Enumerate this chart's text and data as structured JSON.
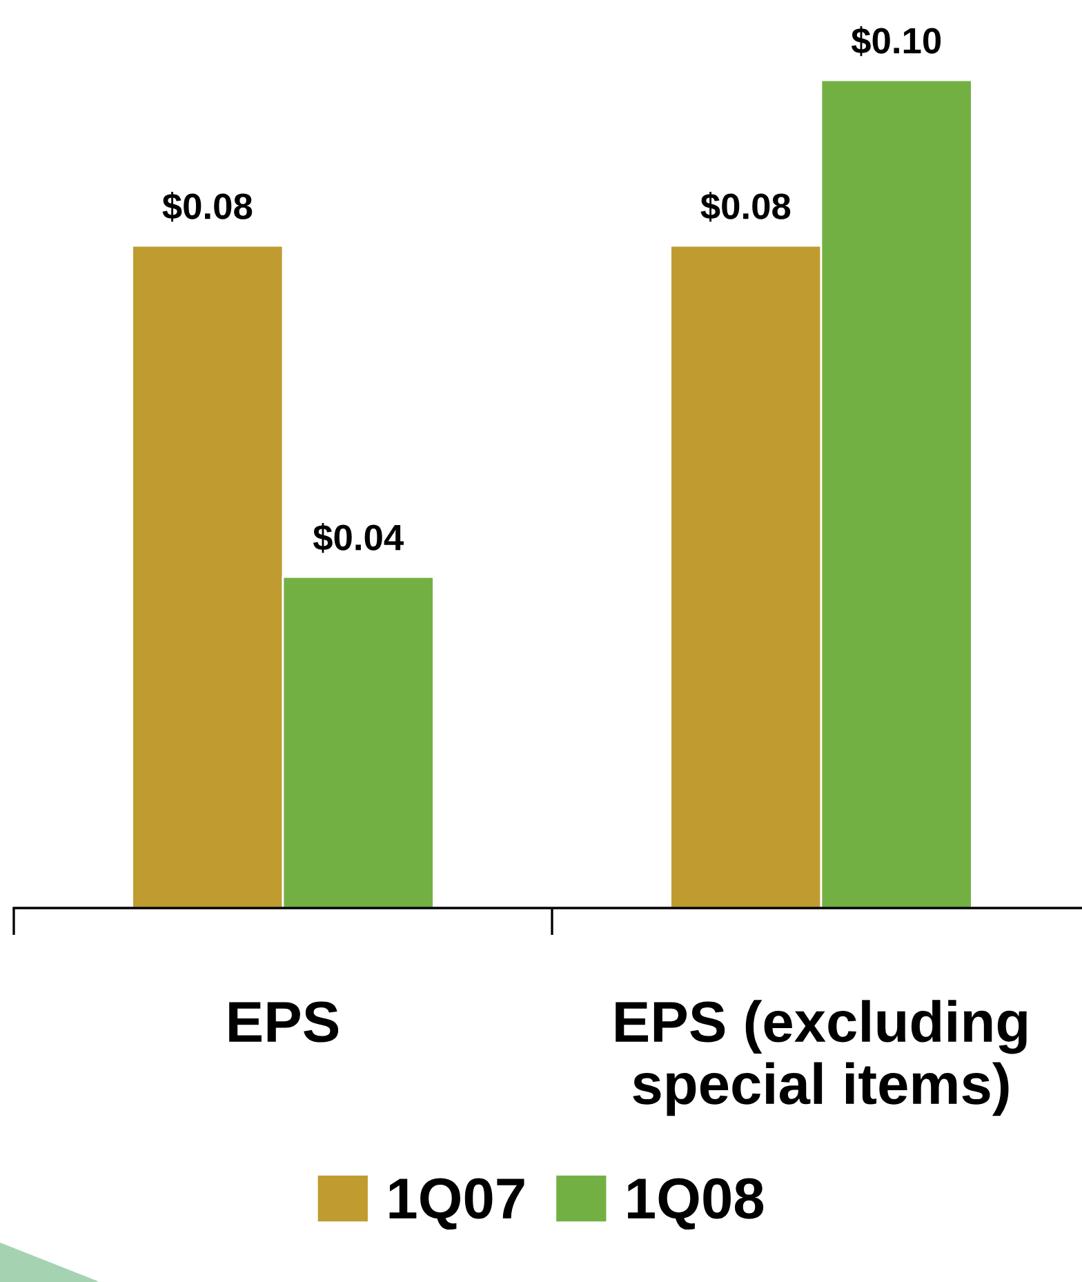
{
  "chart_data": {
    "type": "bar",
    "categories": [
      "EPS",
      "EPS (excluding\nspecial items)"
    ],
    "series": [
      {
        "name": "1Q07",
        "color": "#bf9b30",
        "values": [
          0.08,
          0.08
        ],
        "value_labels": [
          "$0.08",
          "$0.08"
        ]
      },
      {
        "name": "1Q08",
        "color": "#72b043",
        "values": [
          0.04,
          0.1
        ],
        "value_labels": [
          "$0.04",
          "$0.10"
        ]
      }
    ],
    "legend": "bottom",
    "grid": false
  }
}
